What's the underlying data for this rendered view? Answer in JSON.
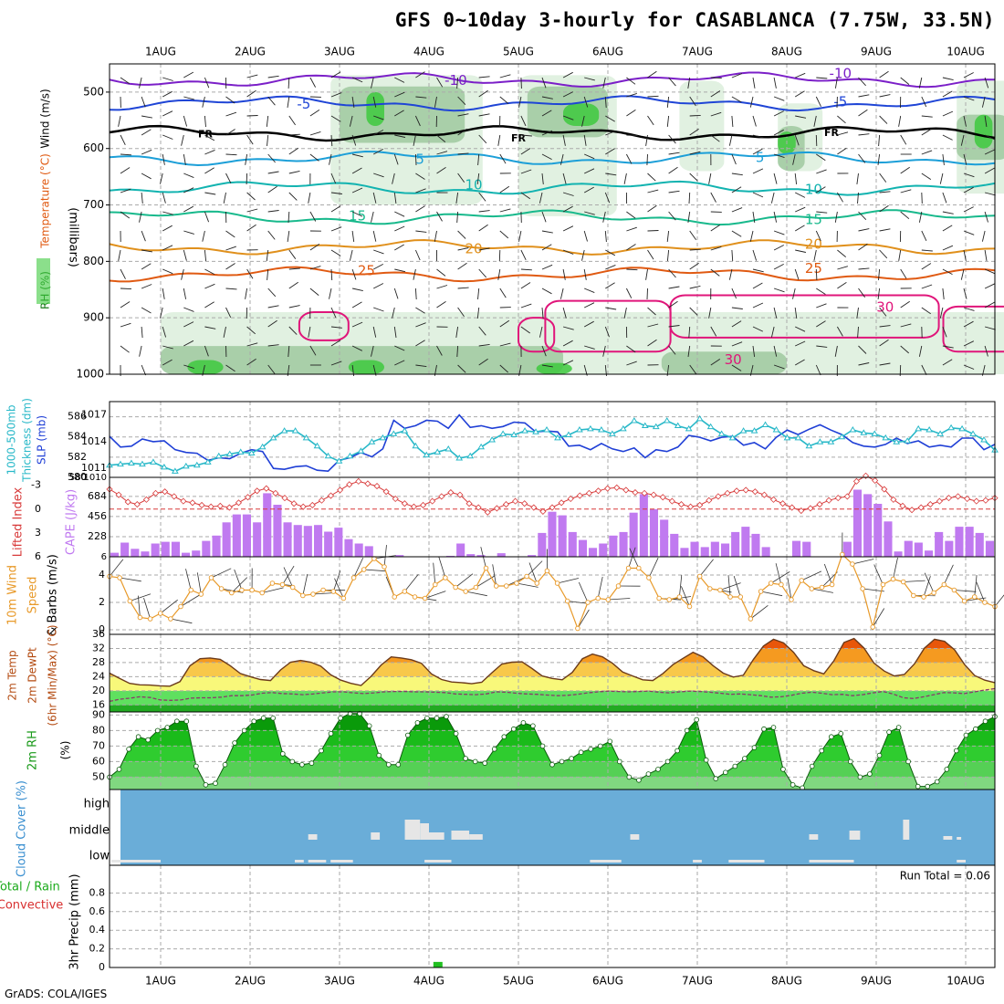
{
  "title": "GFS 0~10day 3-hourly for CASABLANCA (7.75W, 33.5N)",
  "credit": "GrADS: COLA/IGES",
  "colors": {
    "temp_cold": "#7b1fc8",
    "temp_blue": "#1f45d6",
    "temp_light_blue": "#1c9fd8",
    "temp_teal": "#12b3b0",
    "temp_green": "#18b98c",
    "temp_orange": "#e0901c",
    "temp_dark_orange": "#e05a12",
    "temp_magenta": "#e0157a",
    "rh_fill_light": "#dcefdc",
    "rh_fill_mid": "#9fc99f",
    "rh_fill_dark": "#3ec93e",
    "slp": "#1f3fd6",
    "thickness": "#28b8c8",
    "lifted_index": "#d83a3a",
    "cape": "#c07af0",
    "wind_speed": "#e89a2a",
    "cloud_bg": "#6aadd8",
    "cloud_fill": "#e6e6e6",
    "precip": "#21c021"
  },
  "chart_data": [
    {
      "panel": "upper_air",
      "type": "contour",
      "xticks": [
        "1AUG",
        "2AUG",
        "3AUG",
        "4AUG",
        "5AUG",
        "6AUG",
        "7AUG",
        "8AUG",
        "9AUG",
        "10AUG"
      ],
      "ylabel_lines": [
        "RH (%)",
        "Temperature (°C)",
        "Wind (m/s)"
      ],
      "yunit": "(millibars)",
      "yticks": [
        500,
        600,
        700,
        800,
        900,
        1000
      ],
      "ylim": [
        450,
        1000
      ],
      "isotherms": [
        {
          "label": "-10",
          "pressure": 478
        },
        {
          "label": "-5",
          "pressure": 520
        },
        {
          "label": "FR",
          "pressure": 573
        },
        {
          "label": "5",
          "pressure": 617
        },
        {
          "label": "10",
          "pressure": 670
        },
        {
          "label": "15",
          "pressure": 722
        },
        {
          "label": "20",
          "pressure": 775
        },
        {
          "label": "25",
          "pressure": 823
        }
      ],
      "isotherm_labels": [
        {
          "text": "-10",
          "day": 3.3,
          "pressure": 480
        },
        {
          "text": "-10",
          "day": 7.6,
          "pressure": 468
        },
        {
          "text": "-5",
          "day": 1.6,
          "pressure": 522
        },
        {
          "text": "-5",
          "day": 7.6,
          "pressure": 518
        },
        {
          "text": "FR",
          "day": 0.5,
          "pressure": 575
        },
        {
          "text": "FR",
          "day": 4.0,
          "pressure": 583
        },
        {
          "text": "FR",
          "day": 7.5,
          "pressure": 573
        },
        {
          "text": "5",
          "day": 2.9,
          "pressure": 620
        },
        {
          "text": "5",
          "day": 6.7,
          "pressure": 617
        },
        {
          "text": "10",
          "day": 3.5,
          "pressure": 665
        },
        {
          "text": "10",
          "day": 7.3,
          "pressure": 673
        },
        {
          "text": "15",
          "day": 2.2,
          "pressure": 720
        },
        {
          "text": "15",
          "day": 7.3,
          "pressure": 727
        },
        {
          "text": "20",
          "day": 3.5,
          "pressure": 778
        },
        {
          "text": "20",
          "day": 7.3,
          "pressure": 770
        },
        {
          "text": "25",
          "day": 2.3,
          "pressure": 817
        },
        {
          "text": "25",
          "day": 7.3,
          "pressure": 813
        },
        {
          "text": "30",
          "day": 8.1,
          "pressure": 882
        },
        {
          "text": "30",
          "day": 6.4,
          "pressure": 975
        }
      ]
    },
    {
      "panel": "slp_thickness",
      "type": "line",
      "ylabel_left": [
        "1000-500mb",
        "Thickness (dm)"
      ],
      "ylabel_right": "SLP (mb)",
      "yticks_left": [
        580,
        582,
        584,
        586
      ],
      "yticks_right": [
        1011,
        1014,
        1017
      ],
      "bottom_left": "580",
      "bottom_right": "1010",
      "series": [
        {
          "name": "SLP",
          "axis": "right",
          "values": [
            1014.6,
            1013.4,
            1013.5,
            1014.3,
            1014.0,
            1014.1,
            1013.1,
            1012.8,
            1012.7,
            1011.9,
            1012.2,
            1012.1,
            1012.7,
            1013.1,
            1012.9,
            1011.0,
            1010.9,
            1011.2,
            1011.3,
            1010.8,
            1010.7,
            1011.9,
            1012.2,
            1012.8,
            1012.3,
            1013.2,
            1016.4,
            1015.5,
            1015.8,
            1016.4,
            1016.3,
            1015.5,
            1017.0,
            1015.6,
            1015.8,
            1015.5,
            1015.7,
            1016.2,
            1016.1,
            1015.1,
            1015.2,
            1015.1,
            1013.5,
            1013.6,
            1013.1,
            1013.8,
            1013.2,
            1012.9,
            1013.3,
            1012.2,
            1013.1,
            1012.9,
            1013.4,
            1014.7,
            1014.5,
            1014.1,
            1014.5,
            1014.6,
            1013.6,
            1013.9,
            1013.2,
            1014.5,
            1015.3,
            1014.8,
            1015.4,
            1015.9,
            1015.3,
            1014.8,
            1013.9,
            1013.5,
            1013.4,
            1013.7,
            1014.4,
            1013.8,
            1014.1,
            1013.4,
            1013.6,
            1013.4,
            1014.4,
            1014.4,
            1013.1,
            1013.7
          ]
        },
        {
          "name": "Thickness",
          "axis": "left",
          "values": [
            581.2,
            581.3,
            581.4,
            581.3,
            581.5,
            581.0,
            580.6,
            581.1,
            581.2,
            581.5,
            582.1,
            582.3,
            582.5,
            582.4,
            583.0,
            583.9,
            584.6,
            584.6,
            583.9,
            583.1,
            582.1,
            581.6,
            582.1,
            582.6,
            583.5,
            583.9,
            584.3,
            584.6,
            583.1,
            582.2,
            582.5,
            582.8,
            581.9,
            582.1,
            583.0,
            583.7,
            584.3,
            584.2,
            584.6,
            584.5,
            584.7,
            583.9,
            584.2,
            584.7,
            584.8,
            584.7,
            584.3,
            584.8,
            585.6,
            585.1,
            585.0,
            585.6,
            585.1,
            584.8,
            585.8,
            585.0,
            584.3,
            583.9,
            584.6,
            584.6,
            585.2,
            584.7,
            583.9,
            583.9,
            583.1,
            583.5,
            583.5,
            584.0,
            584.7,
            584.4,
            584.3,
            583.9,
            583.5,
            583.6,
            584.8,
            584.7,
            584.3,
            584.9,
            584.8,
            584.3,
            583.7,
            582.7
          ]
        }
      ]
    },
    {
      "panel": "li_cape",
      "type": "bar",
      "ylabel_left": "Lifted Index",
      "ylabel_right": "CAPE (J/kg)",
      "yticks_left": [
        -3,
        0,
        3,
        6
      ],
      "yticks_right": [
        228,
        456,
        684
      ],
      "bottom_right": "6",
      "cape_values": [
        45,
        160,
        90,
        60,
        150,
        170,
        170,
        45,
        70,
        180,
        240,
        390,
        480,
        480,
        390,
        720,
        590,
        390,
        360,
        350,
        360,
        285,
        330,
        200,
        150,
        120,
        0,
        5,
        20,
        0,
        0,
        0,
        0,
        10,
        150,
        30,
        20,
        0,
        40,
        0,
        0,
        20,
        270,
        510,
        470,
        280,
        190,
        100,
        150,
        240,
        280,
        500,
        710,
        540,
        420,
        260,
        100,
        170,
        110,
        170,
        150,
        280,
        340,
        260,
        110,
        0,
        0,
        180,
        170,
        0,
        0,
        0,
        170,
        760,
        710,
        600,
        400,
        60,
        180,
        160,
        70,
        280,
        180,
        340,
        340,
        270,
        180
      ],
      "lifted_index": [
        -2.5,
        -1.8,
        -0.9,
        -0.6,
        -1.2,
        -2.0,
        -2.2,
        -1.6,
        -1.0,
        -0.8,
        -0.5,
        -0.3,
        -0.4,
        -0.2,
        -0.8,
        -1.5,
        -2.3,
        -2.6,
        -2.0,
        -1.4,
        -0.7,
        -0.3,
        -0.5,
        -1.1,
        -1.7,
        -2.4,
        -3.1,
        -3.5,
        -3.2,
        -2.9,
        -2.2,
        -1.3,
        -0.7,
        -0.3,
        -0.5,
        -1.0,
        -1.6,
        -2.1,
        -1.8,
        -0.7,
        -0.2,
        0.4,
        -0.1,
        -0.6,
        -1.0,
        -0.7,
        -0.2,
        0.3,
        -0.2,
        -0.8,
        -1.3,
        -1.7,
        -2.0,
        -2.3,
        -2.6,
        -2.7,
        -2.4,
        -2.1,
        -2.0,
        -1.8,
        -1.5,
        -1.0,
        -0.6,
        -0.3,
        -0.5,
        -1.1,
        -1.6,
        -2.0,
        -2.3,
        -2.4,
        -2.2,
        -1.8,
        -1.2,
        -0.7,
        -0.2,
        0.2,
        -0.1,
        -0.6,
        -1.1,
        -1.4,
        -1.6,
        -3.5,
        -4.2,
        -3.6,
        -2.5,
        -1.2,
        -0.4,
        0.1,
        -0.2,
        -0.6,
        -1.0,
        -1.4,
        -1.6,
        -1.3,
        -1.0,
        -1.1,
        -1.4
      ]
    },
    {
      "panel": "wind10m",
      "type": "line",
      "ylabel_left": "10m Wind",
      "ylabel_mid": "Speed",
      "ylabel_right": "& Barbs (m/s)",
      "yticks": [
        0,
        2,
        4
      ],
      "ylim": [
        0,
        5.5
      ],
      "values": [
        3.9,
        3.8,
        2.1,
        0.9,
        0.8,
        1.2,
        0.8,
        1.7,
        2.9,
        2.6,
        3.8,
        3.0,
        2.7,
        2.9,
        2.9,
        2.7,
        3.4,
        3.3,
        3.1,
        2.5,
        2.6,
        2.9,
        2.8,
        2.3,
        3.8,
        4.4,
        5.2,
        4.6,
        2.4,
        2.8,
        2.4,
        2.3,
        3.3,
        3.8,
        3.1,
        2.8,
        3.1,
        4.5,
        3.2,
        3.2,
        3.4,
        3.9,
        3.4,
        4.3,
        3.4,
        2.1,
        0.1,
        2.0,
        2.3,
        2.2,
        3.2,
        4.5,
        4.5,
        3.8,
        2.3,
        2.2,
        2.4,
        1.7,
        3.9,
        3.0,
        2.9,
        2.4,
        2.4,
        0.8,
        2.8,
        3.4,
        3.3,
        2.2,
        3.6,
        3.0,
        3.1,
        3.3,
        5.5,
        4.8,
        3.0,
        0.2,
        3.3,
        3.7,
        3.5,
        2.5,
        2.4,
        2.7,
        3.3,
        2.9,
        2.1,
        2.4,
        2.0,
        1.7
      ]
    },
    {
      "panel": "temp2m",
      "type": "area",
      "ylabel_lines": [
        "2m Temp",
        "2m DewPt",
        "(6hr Min/Max) (°C)"
      ],
      "yticks": [
        16,
        20,
        24,
        28,
        32,
        36
      ],
      "ylim": [
        14,
        36
      ],
      "temp": [
        25.0,
        23.5,
        22.1,
        21.7,
        21.6,
        21.4,
        21.3,
        22.6,
        27.1,
        29.1,
        29.3,
        28.9,
        27.1,
        24.9,
        24.0,
        23.2,
        22.9,
        25.9,
        28.1,
        28.6,
        28.1,
        27.0,
        24.5,
        23.0,
        22.1,
        21.5,
        24.1,
        27.3,
        29.6,
        29.3,
        28.8,
        27.8,
        24.8,
        23.2,
        22.5,
        22.3,
        22.0,
        22.4,
        25.1,
        27.6,
        28.1,
        28.2,
        26.3,
        24.2,
        23.5,
        23.1,
        25.2,
        29.1,
        30.4,
        29.6,
        27.8,
        25.3,
        24.2,
        23.1,
        22.9,
        24.9,
        27.4,
        29.2,
        30.9,
        29.6,
        27.1,
        25.0,
        23.9,
        24.4,
        28.9,
        32.7,
        34.6,
        33.6,
        30.9,
        27.1,
        25.7,
        24.8,
        28.5,
        33.7,
        34.8,
        32.1,
        27.8,
        25.6,
        24.2,
        24.6,
        27.6,
        32.1,
        34.6,
        34.0,
        31.6,
        27.4,
        24.3,
        23.0,
        22.3
      ],
      "dewpoint": [
        17.0,
        17.6,
        17.9,
        18.3,
        18.1,
        17.4,
        17.3,
        17.4,
        17.9,
        18.0,
        18.0,
        18.2,
        18.6,
        18.6,
        18.8,
        19.3,
        19.5,
        19.2,
        19.1,
        18.9,
        19.1,
        19.4,
        19.7,
        19.7,
        19.4,
        19.2,
        19.4,
        19.7,
        19.8,
        19.8,
        19.7,
        19.7,
        19.6,
        19.5,
        19.1,
        19.0,
        18.9,
        19.1,
        19.7,
        19.6,
        19.3,
        19.1,
        19.0,
        18.8,
        18.6,
        18.7,
        19.0,
        19.4,
        19.7,
        19.9,
        19.8,
        19.7,
        19.8,
        19.9,
        19.6,
        19.4,
        19.7,
        19.9,
        19.8,
        19.6,
        19.3,
        19.0,
        19.1,
        18.9,
        18.6,
        18.2,
        18.3,
        18.7,
        19.3,
        19.6,
        19.3,
        18.9,
        19.0,
        18.6,
        18.9,
        19.4,
        19.8,
        19.1,
        18.0,
        17.8,
        18.3,
        18.9,
        19.5,
        19.4,
        19.2,
        19.7,
        20.2,
        20.6
      ]
    },
    {
      "panel": "rh2m",
      "type": "area",
      "ylabel_left": "2m RH",
      "ylabel_unit": "(%)",
      "yticks": [
        50,
        60,
        70,
        80,
        90
      ],
      "ylim": [
        42,
        92
      ],
      "values": [
        50,
        55,
        68,
        76,
        74,
        80,
        82,
        86,
        86,
        57,
        45,
        46,
        58,
        72,
        80,
        86,
        88,
        88,
        65,
        60,
        58,
        59,
        67,
        78,
        88,
        91,
        91,
        83,
        64,
        58,
        58,
        77,
        85,
        88,
        88,
        89,
        78,
        62,
        60,
        59,
        68,
        76,
        81,
        85,
        83,
        70,
        58,
        60,
        62,
        66,
        68,
        70,
        73,
        60,
        50,
        48,
        52,
        55,
        60,
        67,
        80,
        87,
        61,
        49,
        53,
        57,
        62,
        69,
        81,
        82,
        55,
        45,
        43,
        57,
        67,
        76,
        78,
        60,
        50,
        52,
        64,
        79,
        82,
        60,
        44,
        44,
        47,
        55,
        67,
        77,
        81,
        86,
        89
      ]
    },
    {
      "panel": "cloud",
      "type": "bar",
      "ylabel": "Cloud Cover (%)",
      "levels": [
        "high",
        "middle",
        "low"
      ],
      "middle_segments": [
        [
          2.2,
          2.3
        ],
        [
          2.9,
          3.0
        ],
        [
          3.28,
          3.45
        ],
        [
          3.45,
          3.55
        ],
        [
          3.55,
          3.72
        ],
        [
          3.8,
          4.0
        ],
        [
          4.0,
          4.15
        ],
        [
          5.8,
          5.9
        ],
        [
          7.8,
          7.9
        ],
        [
          8.25,
          8.37
        ],
        [
          8.85,
          8.92
        ],
        [
          9.3,
          9.4
        ],
        [
          9.45,
          9.5
        ]
      ],
      "low_segments": [
        [
          0.0,
          0.55
        ],
        [
          2.05,
          2.15
        ],
        [
          2.2,
          2.4
        ],
        [
          2.45,
          2.7
        ],
        [
          3.5,
          3.8
        ],
        [
          5.35,
          5.7
        ],
        [
          6.5,
          6.6
        ],
        [
          6.9,
          7.3
        ],
        [
          7.8,
          8.3
        ],
        [
          9.45,
          9.55
        ]
      ]
    },
    {
      "panel": "precip3h",
      "type": "bar",
      "ylabel_left": "Total / Rain",
      "ylabel_left2": "Convective",
      "ylabel_right": "3hr Precip (mm)",
      "yticks": [
        0,
        0.2,
        0.4,
        0.6,
        0.8
      ],
      "ylim": [
        0,
        1.0
      ],
      "run_total": "Run Total = 0.06",
      "bars": [
        {
          "day": 3.1,
          "value": 0.06
        }
      ]
    }
  ]
}
